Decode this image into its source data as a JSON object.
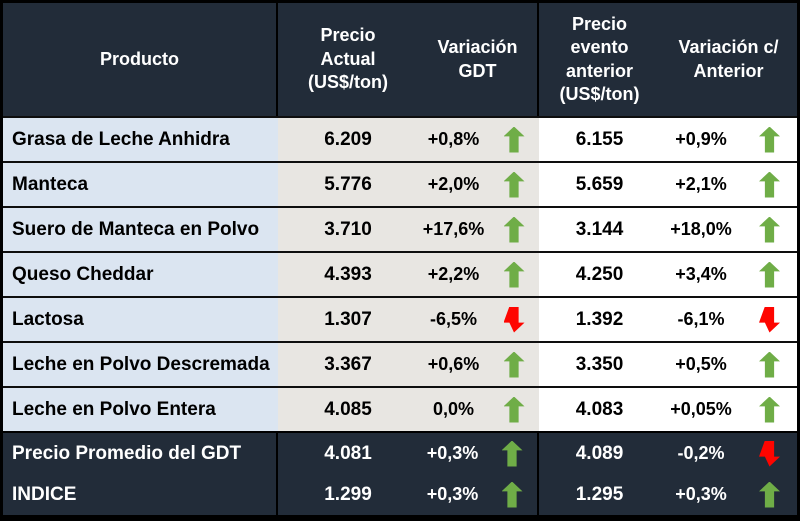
{
  "header": {
    "producto": "Producto",
    "precio_actual": "Precio\nActual\n(US$/ton)",
    "variacion_gdt": "Variación\nGDT",
    "precio_anterior": "Precio\nevento\nanterior\n(US$/ton)",
    "variacion_anterior": "Variación c/\nAnterior"
  },
  "chart_data": {
    "type": "table",
    "columns": [
      "Producto",
      "Precio Actual (US$/ton)",
      "Variación GDT",
      "Precio evento anterior (US$/ton)",
      "Variación c/ Anterior"
    ],
    "rows": [
      {
        "producto": "Grasa de Leche Anhidra",
        "precio_actual": "6.209",
        "variacion_gdt": "+0,8%",
        "gdt_direction": "up",
        "precio_anterior": "6.155",
        "variacion_anterior": "+0,9%",
        "anterior_direction": "up",
        "row_style": "normal"
      },
      {
        "producto": "Manteca",
        "precio_actual": "5.776",
        "variacion_gdt": "+2,0%",
        "gdt_direction": "up",
        "precio_anterior": "5.659",
        "variacion_anterior": "+2,1%",
        "anterior_direction": "up",
        "row_style": "normal"
      },
      {
        "producto": "Suero de Manteca en Polvo",
        "precio_actual": "3.710",
        "variacion_gdt": "+17,6%",
        "gdt_direction": "up",
        "precio_anterior": "3.144",
        "variacion_anterior": "+18,0%",
        "anterior_direction": "up",
        "row_style": "normal"
      },
      {
        "producto": "Queso Cheddar",
        "precio_actual": "4.393",
        "variacion_gdt": "+2,2%",
        "gdt_direction": "up",
        "precio_anterior": "4.250",
        "variacion_anterior": "+3,4%",
        "anterior_direction": "up",
        "row_style": "normal"
      },
      {
        "producto": "Lactosa",
        "precio_actual": "1.307",
        "variacion_gdt": "-6,5%",
        "gdt_direction": "down",
        "precio_anterior": "1.392",
        "variacion_anterior": "-6,1%",
        "anterior_direction": "down",
        "row_style": "normal"
      },
      {
        "producto": "Leche en Polvo Descremada",
        "precio_actual": "3.367",
        "variacion_gdt": "+0,6%",
        "gdt_direction": "up",
        "precio_anterior": "3.350",
        "variacion_anterior": "+0,5%",
        "anterior_direction": "up",
        "row_style": "normal"
      },
      {
        "producto": "Leche en Polvo Entera",
        "precio_actual": "4.085",
        "variacion_gdt": "0,0%",
        "gdt_direction": "up",
        "precio_anterior": "4.083",
        "variacion_anterior": "+0,05%",
        "anterior_direction": "up",
        "row_style": "normal"
      },
      {
        "producto": "Precio Promedio del GDT",
        "precio_actual": "4.081",
        "variacion_gdt": "+0,3%",
        "gdt_direction": "up",
        "precio_anterior": "4.089",
        "variacion_anterior": "-0,2%",
        "anterior_direction": "down",
        "row_style": "summary"
      },
      {
        "producto": "INDICE",
        "precio_actual": "1.299",
        "variacion_gdt": "+0,3%",
        "gdt_direction": "up",
        "precio_anterior": "1.295",
        "variacion_anterior": "+0,3%",
        "anterior_direction": "up",
        "row_style": "summary"
      }
    ]
  },
  "colors": {
    "header_bg": "#222c39",
    "product_col_bg": "#dbe5f1",
    "current_group_bg": "#e8e6e2",
    "previous_group_bg": "#ffffff",
    "up_arrow": "#6fad47",
    "down_arrow": "#fe0500",
    "border": "#000000"
  },
  "icons": {
    "up": "up-block-arrow",
    "down": "down-block-arrow"
  }
}
